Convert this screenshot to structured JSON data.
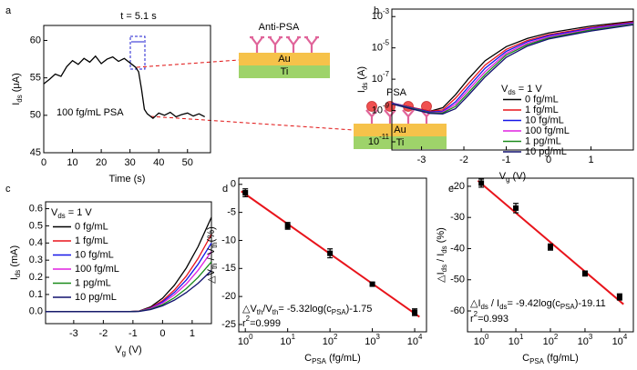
{
  "chart_data": [
    {
      "type": "line",
      "panel": "a",
      "xlabel": "Time (s)",
      "ylabel": [
        "I",
        {
          "sub": "ds"
        },
        " (μA)"
      ],
      "x": [
        0,
        2,
        4,
        6,
        8,
        10,
        12,
        14,
        16,
        18,
        20,
        22,
        24,
        26,
        28,
        30,
        32,
        33,
        34,
        35,
        36,
        38,
        40,
        42,
        44,
        46,
        48,
        50,
        52,
        54,
        56
      ],
      "series": [
        {
          "color": "#000000",
          "values": [
            54.2,
            54.8,
            55.5,
            55.2,
            56.5,
            57.3,
            56.8,
            57.6,
            57.1,
            57.9,
            56.9,
            57.5,
            57.8,
            57.2,
            57.6,
            57.0,
            56.4,
            55.8,
            53.5,
            50.8,
            50.2,
            49.6,
            50.3,
            50.0,
            50.4,
            49.8,
            50.1,
            50.3,
            49.9,
            50.2,
            49.8
          ]
        }
      ],
      "xlim": [
        0,
        58
      ],
      "ylim": [
        45,
        62
      ],
      "xticks": [
        0,
        10,
        20,
        30,
        40,
        50
      ],
      "yticks": [
        45,
        50,
        55,
        60
      ],
      "annotations": [
        {
          "text": "t = 5.1 s",
          "color": "#1f1fd0"
        },
        {
          "text": "100 fg/mL PSA",
          "color": "#e01010"
        }
      ]
    },
    {
      "type": "line",
      "panel": "b",
      "log_y": true,
      "xlabel": [
        "V",
        {
          "sub": "g"
        },
        " (V)"
      ],
      "ylabel": [
        "I",
        {
          "sub": "ds"
        },
        " (A)"
      ],
      "x": [
        -3.7,
        -3.2,
        -2.8,
        -2.5,
        -2.2,
        -1.9,
        -1.5,
        -1,
        -0.5,
        0,
        1,
        2
      ],
      "series": [
        {
          "name": "0 fg/mL",
          "color": "#000000",
          "values": [
            3e-09,
            1.5e-09,
            9e-10,
            1.5e-09,
            1e-08,
            1e-07,
            1.5e-06,
            1.2e-05,
            4e-05,
            9e-05,
            0.00025,
            0.0005
          ]
        },
        {
          "name": "1 fg/mL",
          "color": "#e8141b",
          "values": [
            3e-09,
            1.5e-09,
            9e-10,
            1.1e-09,
            6e-09,
            5e-08,
            8e-07,
            8e-06,
            3e-05,
            7e-05,
            0.0002,
            0.00045
          ]
        },
        {
          "name": "10 fg/mL",
          "color": "#1515e8",
          "values": [
            3e-09,
            1.4e-09,
            8e-10,
            9e-10,
            3.5e-09,
            3e-08,
            5e-07,
            6e-06,
            2.5e-05,
            6e-05,
            0.00018,
            0.0004
          ]
        },
        {
          "name": "100 fg/mL",
          "color": "#e020e0",
          "values": [
            2.8e-09,
            1.3e-09,
            7e-10,
            8e-10,
            2.5e-09,
            2e-08,
            3e-07,
            4.5e-06,
            2e-05,
            5e-05,
            0.00016,
            0.00036
          ]
        },
        {
          "name": "1 pg/mL",
          "color": "#1a8a1a",
          "values": [
            2.7e-09,
            1.3e-09,
            7e-10,
            7e-10,
            1.8e-09,
            1.3e-08,
            2e-07,
            3.5e-06,
            1.6e-05,
            4.3e-05,
            0.00014,
            0.00033
          ]
        },
        {
          "name": "10 pg/mL",
          "color": "#10106e",
          "values": [
            2.6e-09,
            1.2e-09,
            6.5e-10,
            6e-10,
            1.3e-09,
            9e-09,
            1.4e-07,
            2.5e-06,
            1.3e-05,
            3.7e-05,
            0.00012,
            0.0003
          ]
        }
      ],
      "legend_title": [
        "V",
        {
          "sub": "ds"
        },
        " = 1 V"
      ],
      "xlim": [
        -3.7,
        2
      ],
      "ylim": [
        3e-12,
        0.003
      ],
      "xticks": [
        -3,
        -2,
        -1,
        0,
        1
      ],
      "yticks": [
        {
          "value": 1e-11,
          "label": [
            "10",
            {
              "sup": "-11"
            }
          ]
        },
        {
          "value": 1e-09,
          "label": [
            "10",
            {
              "sup": "-9"
            }
          ]
        },
        {
          "value": 1e-07,
          "label": [
            "10",
            {
              "sup": "-7"
            }
          ]
        },
        {
          "value": 1e-05,
          "label": [
            "10",
            {
              "sup": "-5"
            }
          ]
        },
        {
          "value": 0.001,
          "label": [
            "10",
            {
              "sup": "-3"
            }
          ]
        }
      ]
    },
    {
      "type": "line",
      "panel": "c",
      "xlabel": [
        "V",
        {
          "sub": "g"
        },
        " (V)"
      ],
      "ylabel": [
        "I",
        {
          "sub": "ds"
        },
        " (mA)"
      ],
      "x": [
        -3.95,
        -2,
        -1.2,
        -0.8,
        -0.4,
        0,
        0.4,
        0.8,
        1.2,
        1.65
      ],
      "series": [
        {
          "name": "0 fg/mL",
          "color": "#000000",
          "values": [
            0,
            0,
            0,
            0.003,
            0.028,
            0.078,
            0.154,
            0.254,
            0.379,
            0.55
          ]
        },
        {
          "name": "1 fg/mL",
          "color": "#e8141b",
          "values": [
            0,
            0,
            0,
            0.003,
            0.023,
            0.064,
            0.126,
            0.207,
            0.31,
            0.45
          ]
        },
        {
          "name": "10 fg/mL",
          "color": "#1515e8",
          "values": [
            0,
            0,
            0,
            0.002,
            0.02,
            0.057,
            0.112,
            0.184,
            0.276,
            0.4
          ]
        },
        {
          "name": "100 fg/mL",
          "color": "#e020e0",
          "values": [
            0,
            0,
            0,
            0.002,
            0.018,
            0.05,
            0.098,
            0.161,
            0.241,
            0.35
          ]
        },
        {
          "name": "1 pg/mL",
          "color": "#1a8a1a",
          "values": [
            0,
            0,
            0,
            0.002,
            0.015,
            0.041,
            0.081,
            0.134,
            0.2,
            0.29
          ]
        },
        {
          "name": "10 pg/mL",
          "color": "#10106e",
          "values": [
            0,
            0,
            0,
            0.001,
            0.012,
            0.034,
            0.067,
            0.111,
            0.165,
            0.24
          ]
        }
      ],
      "legend_title": [
        "V",
        {
          "sub": "ds"
        },
        " = 1 V"
      ],
      "xlim": [
        -3.95,
        1.65
      ],
      "ylim": [
        -0.07,
        0.64
      ],
      "xticks": [
        -3,
        -2,
        -1,
        0,
        1
      ],
      "yticks": [
        {
          "value": 0,
          "label": "0.0"
        },
        0.1,
        0.2,
        0.3,
        0.4,
        0.5,
        0.6
      ]
    },
    {
      "type": "scatter",
      "panel": "d",
      "log_x": true,
      "xlabel": [
        "C",
        {
          "sub": "PSA"
        },
        " (fg/mL)"
      ],
      "ylabel": [
        "△V",
        {
          "sub": "th"
        },
        " / V",
        {
          "sub": "th"
        },
        "(%)"
      ],
      "x": [
        1,
        10,
        100,
        1000,
        10000
      ],
      "values": [
        -1.5,
        -7.4,
        -12.3,
        -17.8,
        -22.8
      ],
      "errors": [
        0.7,
        0.6,
        0.8,
        0.3,
        0.6
      ],
      "color": "#000000",
      "fit": {
        "color": "#e8141b",
        "x": [
          0.8,
          13000
        ],
        "y": [
          -1.23,
          -23.64
        ]
      },
      "xlim": [
        0.7,
        19000
      ],
      "ylim": [
        -26.3,
        1.1
      ],
      "xticks": [
        {
          "value": 1,
          "label": [
            "10",
            {
              "sup": "0"
            }
          ]
        },
        {
          "value": 10,
          "label": [
            "10",
            {
              "sup": "1"
            }
          ]
        },
        {
          "value": 100,
          "label": [
            "10",
            {
              "sup": "2"
            }
          ]
        },
        {
          "value": 1000,
          "label": [
            "10",
            {
              "sup": "3"
            }
          ]
        },
        {
          "value": 10000,
          "label": [
            "10",
            {
              "sup": "4"
            }
          ]
        }
      ],
      "yticks": [
        0,
        -5,
        -10,
        -15,
        -20,
        -25
      ],
      "annotations": [
        {
          "text": [
            "△V",
            {
              "sub": "th"
            },
            "/V",
            {
              "sub": "th"
            },
            "= -5.32log(c",
            {
              "sub": "PSA"
            },
            ")-1.75"
          ],
          "color": "#444444"
        },
        {
          "text": [
            "r",
            {
              "sup": "2"
            },
            "=0.999"
          ],
          "color": "#444444"
        }
      ]
    },
    {
      "type": "scatter",
      "panel": "e",
      "log_x": true,
      "xlabel": [
        "C",
        {
          "sub": "PSA"
        },
        " (fg/mL)"
      ],
      "ylabel": [
        "△I",
        {
          "sub": "ds"
        },
        " / I",
        {
          "sub": "ds"
        },
        " (%)"
      ],
      "x": [
        1,
        10,
        100,
        1000,
        10000
      ],
      "values": [
        -19,
        -27,
        -39.5,
        -48,
        -55.5
      ],
      "errors": [
        1.3,
        1.5,
        1,
        0.8,
        1
      ],
      "color": "#000000",
      "fit": {
        "color": "#e8141b",
        "x": [
          0.8,
          13000
        ],
        "y": [
          -18.2,
          -57.86
        ]
      },
      "xlim": [
        0.4,
        25000
      ],
      "ylim": [
        -66.7,
        -17.4
      ],
      "xticks": [
        {
          "value": 1,
          "label": [
            "10",
            {
              "sup": "0"
            }
          ]
        },
        {
          "value": 10,
          "label": [
            "10",
            {
              "sup": "1"
            }
          ]
        },
        {
          "value": 100,
          "label": [
            "10",
            {
              "sup": "2"
            }
          ]
        },
        {
          "value": 1000,
          "label": [
            "10",
            {
              "sup": "3"
            }
          ]
        },
        {
          "value": 10000,
          "label": [
            "10",
            {
              "sup": "4"
            }
          ]
        }
      ],
      "yticks": [
        -20,
        -30,
        -40,
        -50,
        -60
      ],
      "annotations": [
        {
          "text": [
            "△I",
            {
              "sub": "ds"
            },
            " / I",
            {
              "sub": "ds"
            },
            "= -9.42log(c",
            {
              "sub": "PSA"
            },
            ")-19.11"
          ],
          "color": "#444444"
        },
        {
          "text": [
            "r",
            {
              "sup": "2"
            },
            "=0.993"
          ],
          "color": "#444444"
        }
      ]
    }
  ],
  "diagram": {
    "top": {
      "label": "Anti-PSA",
      "layers": [
        "Au",
        "Ti"
      ]
    },
    "bottom": {
      "label": "PSA",
      "layers": [
        "Au",
        "Ti"
      ]
    }
  }
}
